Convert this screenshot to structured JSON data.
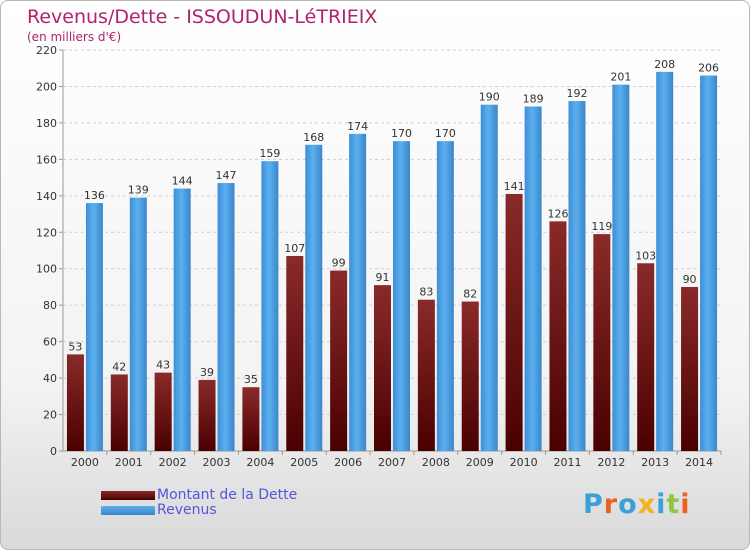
{
  "chart_data": {
    "type": "bar",
    "title": "Revenus/Dette - ISSOUDUN-LéTRIEIX",
    "subtitle": "(en milliers d'€)",
    "categories": [
      "2000",
      "2001",
      "2002",
      "2003",
      "2004",
      "2005",
      "2006",
      "2007",
      "2008",
      "2009",
      "2010",
      "2011",
      "2012",
      "2013",
      "2014"
    ],
    "series": [
      {
        "name": "Montant de la Dette",
        "color": "#7a1e1e",
        "values": [
          53,
          42,
          43,
          39,
          35,
          107,
          99,
          91,
          83,
          82,
          141,
          126,
          119,
          103,
          90
        ]
      },
      {
        "name": "Revenus",
        "color": "#4fa3e6",
        "values": [
          136,
          139,
          144,
          147,
          159,
          168,
          174,
          170,
          170,
          190,
          189,
          192,
          201,
          208,
          206
        ]
      }
    ],
    "ylim": [
      0,
      220
    ],
    "yticks": [
      0,
      20,
      40,
      60,
      80,
      100,
      120,
      140,
      160,
      180,
      200,
      220
    ],
    "grid": true,
    "legend_position": "bottom-left"
  },
  "logo": {
    "letters": [
      {
        "ch": "P",
        "color": "#3aa0d8"
      },
      {
        "ch": "r",
        "color": "#e8641e"
      },
      {
        "ch": "o",
        "color": "#3aa0d8"
      },
      {
        "ch": "x",
        "color": "#f0b41e"
      },
      {
        "ch": "i",
        "color": "#3aa0d8"
      },
      {
        "ch": "t",
        "color": "#8ec63f"
      },
      {
        "ch": "i",
        "color": "#e8641e"
      }
    ]
  }
}
